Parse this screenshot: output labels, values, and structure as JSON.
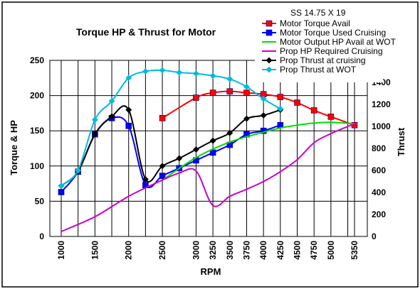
{
  "chart_data": {
    "type": "line",
    "title": "Torque HP & Thrust for Motor",
    "xlabel": "RPM",
    "ylabel": "Torque & HP",
    "y2label": "Thrust",
    "legend_title": "SS 14.75 X 19",
    "legend_position": "top-right",
    "grid": true,
    "categories": [
      "1000",
      "1500",
      "2000",
      "2500",
      "3000",
      "3250",
      "3500",
      "3750",
      "4000",
      "4250",
      "4500",
      "4750",
      "5000",
      "5350"
    ],
    "x": [
      1000,
      1250,
      1500,
      1750,
      2000,
      2250,
      2500,
      2750,
      3000,
      3250,
      3500,
      3750,
      4000,
      4250,
      4500,
      4750,
      5000,
      5250,
      5350
    ],
    "ylim": [
      0,
      250
    ],
    "yticks": [
      0,
      50,
      100,
      150,
      200,
      250
    ],
    "y2lim": [
      0,
      1600
    ],
    "y2ticks": [
      0,
      200,
      400,
      600,
      800,
      1000,
      1200,
      1400
    ],
    "series": [
      {
        "name": "Motor Torque Avail",
        "color": "#ff0000",
        "marker": "square",
        "axis": "left",
        "points": [
          [
            2500,
            168
          ],
          [
            3000,
            197
          ],
          [
            3250,
            204
          ],
          [
            3500,
            206
          ],
          [
            3750,
            204
          ],
          [
            4000,
            202
          ],
          [
            4250,
            198
          ],
          [
            4500,
            190
          ],
          [
            4750,
            179
          ],
          [
            5000,
            170
          ],
          [
            5350,
            158
          ]
        ]
      },
      {
        "name": "Motor Torque Used Cruising",
        "color": "#0000ff",
        "marker": "square",
        "axis": "left",
        "points": [
          [
            1000,
            63
          ],
          [
            1250,
            92
          ],
          [
            1500,
            145
          ],
          [
            1750,
            168
          ],
          [
            2000,
            157
          ],
          [
            2250,
            73
          ],
          [
            2500,
            86
          ],
          [
            2750,
            97
          ],
          [
            3000,
            108
          ],
          [
            3250,
            119
          ],
          [
            3500,
            130
          ],
          [
            3750,
            145
          ],
          [
            4000,
            150
          ],
          [
            4250,
            158
          ]
        ]
      },
      {
        "name": "Motor Output HP Avail at WOT",
        "color": "#00dd00",
        "marker": "none",
        "axis": "left",
        "points": [
          [
            2500,
            80
          ],
          [
            3000,
            112
          ],
          [
            3500,
            134
          ],
          [
            4000,
            148
          ],
          [
            4250,
            154
          ],
          [
            4500,
            158
          ],
          [
            4750,
            161
          ],
          [
            5000,
            162
          ],
          [
            5350,
            160
          ]
        ]
      },
      {
        "name": "Prop HP Required Cruising",
        "color": "#cc00cc",
        "marker": "none",
        "axis": "left",
        "points": [
          [
            1000,
            7
          ],
          [
            1500,
            28
          ],
          [
            2000,
            57
          ],
          [
            2500,
            80
          ],
          [
            2750,
            90
          ],
          [
            3000,
            93
          ],
          [
            3250,
            44
          ],
          [
            3500,
            57
          ],
          [
            3750,
            67
          ],
          [
            4000,
            78
          ],
          [
            4250,
            92
          ],
          [
            4500,
            109
          ],
          [
            4750,
            133
          ],
          [
            5000,
            146
          ],
          [
            5350,
            160
          ]
        ]
      },
      {
        "name": "Prop Thrust at cruising",
        "color": "#000000",
        "marker": "diamond",
        "axis": "right",
        "points": [
          [
            1000,
            460
          ],
          [
            1250,
            590
          ],
          [
            1500,
            930
          ],
          [
            1750,
            1090
          ],
          [
            2000,
            1150
          ],
          [
            2250,
            520
          ],
          [
            2500,
            640
          ],
          [
            2750,
            710
          ],
          [
            3000,
            790
          ],
          [
            3250,
            870
          ],
          [
            3500,
            940
          ],
          [
            3750,
            1070
          ],
          [
            4000,
            1100
          ],
          [
            4250,
            1150
          ]
        ]
      },
      {
        "name": "Prop Thrust at WOT",
        "color": "#00bbdd",
        "marker": "diamond",
        "axis": "right",
        "points": [
          [
            1000,
            460
          ],
          [
            1250,
            600
          ],
          [
            1500,
            1060
          ],
          [
            1750,
            1230
          ],
          [
            2000,
            1440
          ],
          [
            2250,
            1500
          ],
          [
            2500,
            1510
          ],
          [
            2750,
            1490
          ],
          [
            3000,
            1480
          ],
          [
            3250,
            1460
          ],
          [
            3500,
            1430
          ],
          [
            3750,
            1360
          ],
          [
            4000,
            1250
          ],
          [
            4250,
            1160
          ]
        ]
      }
    ]
  }
}
